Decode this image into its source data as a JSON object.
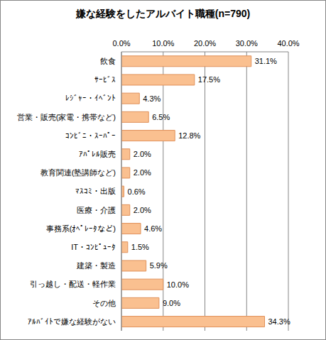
{
  "chart_data": {
    "type": "bar",
    "orientation": "horizontal",
    "title": "嫌な経験をしたアルバイト職種(n=790)",
    "categories": [
      "飲食",
      "ｻｰﾋﾞｽ",
      "ﾚｼﾞｬｰ・ｲﾍﾞﾝﾄ",
      "営業・販売(家電・携帯など)",
      "ｺﾝﾋﾞﾆ・ｽｰﾊﾟｰ",
      "ｱﾊﾟﾚﾙ販売",
      "教育関連(塾講師など)",
      "ﾏｽｺﾐ・出版",
      "医療・介護",
      "事務系(ｵﾍﾟﾚｰﾀなど)",
      "IT・ｺﾝﾋﾟｭｰﾀ",
      "建築・製造",
      "引っ越し・配送・軽作業",
      "その他",
      "ｱﾙﾊﾞｲﾄで嫌な経験がない"
    ],
    "values": [
      31.1,
      17.5,
      4.3,
      6.5,
      12.8,
      2.0,
      2.0,
      0.6,
      2.0,
      4.6,
      1.5,
      5.9,
      10.0,
      9.0,
      34.3
    ],
    "value_labels": [
      "31.1%",
      "17.5%",
      "4.3%",
      "6.5%",
      "12.8%",
      "2.0%",
      "2.0%",
      "0.6%",
      "2.0%",
      "4.6%",
      "1.5%",
      "5.9%",
      "10.0%",
      "9.0%",
      "34.3%"
    ],
    "color": "#fac090",
    "xlim": [
      0,
      40
    ],
    "xticks": [
      {
        "value": 0,
        "label": "0.0%"
      },
      {
        "value": 10,
        "label": "10.0%"
      },
      {
        "value": 20,
        "label": "20.0%"
      },
      {
        "value": 30,
        "label": "30.0%"
      },
      {
        "value": 40,
        "label": "40.0%"
      }
    ],
    "grid": true,
    "data_labels": true
  }
}
